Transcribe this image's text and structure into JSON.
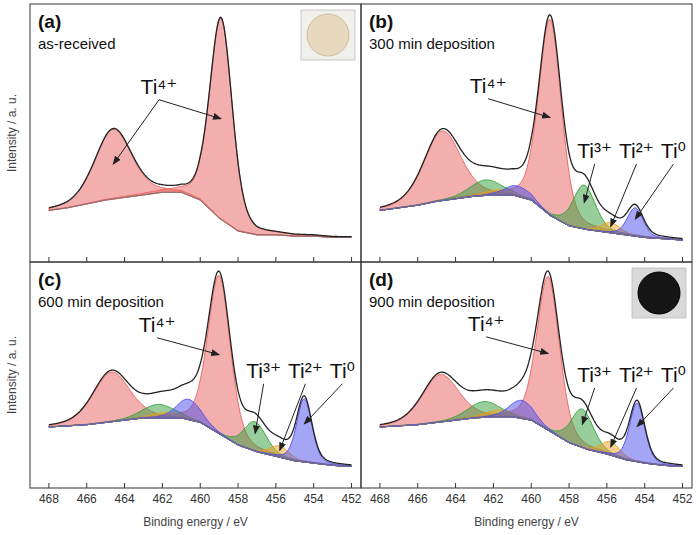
{
  "chart_data": [
    {
      "type": "area",
      "title": "(a)",
      "subtitle": "as-received",
      "y_label": "Intensity / a. u.",
      "xlim": [
        469,
        451.5
      ],
      "xticks": [
        468,
        466,
        464,
        462,
        460,
        458,
        456,
        454,
        452
      ],
      "ylim": [
        0,
        100
      ],
      "grid": false,
      "tick_labels": false,
      "x": [
        468,
        467,
        466,
        465,
        464,
        463,
        462,
        461,
        460,
        459,
        458,
        457,
        456,
        455,
        454,
        453,
        452
      ],
      "background": [
        20,
        21,
        22.5,
        24,
        25,
        26,
        27,
        27,
        24,
        17,
        12,
        10.5,
        10.5,
        10,
        10,
        9.5,
        9.5
      ],
      "series": [
        {
          "name": "Ti⁴⁺",
          "color": "#e8605c",
          "peaks": [
            {
              "center": 458.9,
              "height": 78,
              "fwhm": 1.4
            },
            {
              "center": 464.6,
              "height": 27,
              "fwhm": 2.3
            }
          ]
        }
      ]
    },
    {
      "type": "area",
      "title": "(b)",
      "subtitle": "300 min deposition",
      "xlim": [
        469,
        451.5
      ],
      "xticks": [
        468,
        466,
        464,
        462,
        460,
        458,
        456,
        454,
        452
      ],
      "ylim": [
        0,
        100
      ],
      "grid": false,
      "tick_labels": false,
      "x": [
        468,
        467,
        466,
        465,
        464,
        463,
        462,
        461,
        460,
        459,
        458,
        457,
        456,
        455,
        454,
        453,
        452
      ],
      "background": [
        20,
        21,
        22,
        23.5,
        24.5,
        25.5,
        26,
        26,
        24,
        18,
        14,
        12.5,
        11.5,
        10.5,
        9.5,
        9,
        8.5
      ],
      "series": [
        {
          "name": "Ti⁴⁺",
          "color": "#e8605c",
          "peaks": [
            {
              "center": 459,
              "height": 76,
              "fwhm": 1.4
            },
            {
              "center": 464.7,
              "height": 27,
              "fwhm": 2.3
            }
          ]
        },
        {
          "name": "Ti³⁺",
          "color": "#2f9e3a",
          "peaks": [
            {
              "center": 457.2,
              "height": 17,
              "fwhm": 1.4
            },
            {
              "center": 462.4,
              "height": 6,
              "fwhm": 2.0
            }
          ]
        },
        {
          "name": "Ti²⁺",
          "color": "#f0a020",
          "peaks": [
            {
              "center": 455.8,
              "height": 4,
              "fwhm": 1.2
            },
            {
              "center": 461.7,
              "height": 2,
              "fwhm": 1.8
            }
          ]
        },
        {
          "name": "Ti⁰",
          "color": "#4b4bec",
          "peaks": [
            {
              "center": 454.5,
              "height": 11,
              "fwhm": 1.0
            },
            {
              "center": 460.7,
              "height": 4,
              "fwhm": 1.6
            }
          ]
        }
      ]
    },
    {
      "type": "area",
      "title": "(c)",
      "subtitle": "600 min deposition",
      "y_label": "Intensity / a. u.",
      "x_label": "Binding energy / eV",
      "xlim": [
        469,
        451.5
      ],
      "xticks": [
        468,
        466,
        464,
        462,
        460,
        458,
        456,
        454,
        452
      ],
      "ylim": [
        0,
        100
      ],
      "grid": false,
      "tick_labels": "x",
      "x": [
        468,
        467,
        466,
        465,
        464,
        463,
        462,
        461,
        460,
        459,
        458,
        457,
        456,
        455,
        454,
        453,
        452
      ],
      "background": [
        27,
        27.5,
        28,
        29,
        30,
        31,
        31,
        31,
        29,
        24,
        19,
        16,
        14,
        12,
        11,
        10,
        9.5
      ],
      "series": [
        {
          "name": "Ti⁴⁺",
          "color": "#e8605c",
          "peaks": [
            {
              "center": 459,
              "height": 70,
              "fwhm": 1.4
            },
            {
              "center": 464.7,
              "height": 22,
              "fwhm": 2.3
            }
          ]
        },
        {
          "name": "Ti³⁺",
          "color": "#2f9e3a",
          "peaks": [
            {
              "center": 457.1,
              "height": 13,
              "fwhm": 1.4
            },
            {
              "center": 462.2,
              "height": 6,
              "fwhm": 2.0
            }
          ]
        },
        {
          "name": "Ti²⁺",
          "color": "#f0a020",
          "peaks": [
            {
              "center": 455.8,
              "height": 5,
              "fwhm": 1.2
            },
            {
              "center": 461.7,
              "height": 2.5,
              "fwhm": 1.8
            }
          ]
        },
        {
          "name": "Ti⁰",
          "color": "#4b4bec",
          "peaks": [
            {
              "center": 454.5,
              "height": 28,
              "fwhm": 0.95
            },
            {
              "center": 460.6,
              "height": 9,
              "fwhm": 1.5
            }
          ]
        }
      ]
    },
    {
      "type": "area",
      "title": "(d)",
      "subtitle": "900 min deposition",
      "x_label": "Binding energy / eV",
      "xlim": [
        469,
        451.5
      ],
      "xticks": [
        468,
        466,
        464,
        462,
        460,
        458,
        456,
        454,
        452
      ],
      "ylim": [
        0,
        100
      ],
      "grid": false,
      "tick_labels": "x",
      "x": [
        468,
        467,
        466,
        465,
        464,
        463,
        462,
        461,
        460,
        459,
        458,
        457,
        456,
        455,
        454,
        453,
        452
      ],
      "background": [
        27,
        27.5,
        28,
        29,
        30,
        31,
        31.5,
        31.5,
        30,
        25,
        20,
        17,
        15,
        12.5,
        11,
        10,
        9.5
      ],
      "series": [
        {
          "name": "Ti⁴⁺",
          "color": "#e8605c",
          "peaks": [
            {
              "center": 459.1,
              "height": 68,
              "fwhm": 1.4
            },
            {
              "center": 464.8,
              "height": 21,
              "fwhm": 2.3
            }
          ]
        },
        {
          "name": "Ti³⁺",
          "color": "#2f9e3a",
          "peaks": [
            {
              "center": 457.3,
              "height": 17,
              "fwhm": 1.4
            },
            {
              "center": 462.5,
              "height": 7,
              "fwhm": 2.0
            }
          ]
        },
        {
          "name": "Ti²⁺",
          "color": "#f0a020",
          "peaks": [
            {
              "center": 455.8,
              "height": 6,
              "fwhm": 1.2
            },
            {
              "center": 461.7,
              "height": 3,
              "fwhm": 1.8
            }
          ]
        },
        {
          "name": "Ti⁰",
          "color": "#4b4bec",
          "peaks": [
            {
              "center": 454.4,
              "height": 26,
              "fwhm": 0.95
            },
            {
              "center": 460.5,
              "height": 8,
              "fwhm": 1.5
            }
          ]
        }
      ]
    }
  ]
}
